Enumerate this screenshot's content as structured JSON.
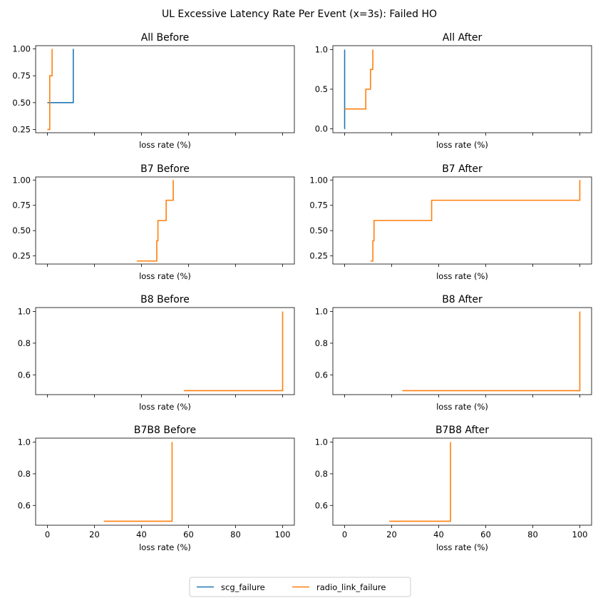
{
  "figure": {
    "title": "UL Excessive Latency Rate Per Event (x=3s): Failed HO"
  },
  "colors": {
    "scg_failure": "#1f77b4",
    "radio_link_failure": "#ff7f0e"
  },
  "legend": {
    "placement": "bottom-center",
    "entries": [
      {
        "key": "scg_failure",
        "label": "scg_failure"
      },
      {
        "key": "radio_link_failure",
        "label": "radio_link_failure"
      }
    ]
  },
  "chart_data": [
    {
      "type": "line",
      "step": true,
      "title": "All Before",
      "xlabel": "loss rate (%)",
      "xlim": [
        -5,
        105
      ],
      "ylim": [
        0.22,
        1.03
      ],
      "yticks": [
        0.25,
        0.5,
        0.75,
        1.0
      ],
      "ytick_labels": [
        "0.25",
        "0.50",
        "0.75",
        "1.00"
      ],
      "xticks": [
        0,
        20,
        40,
        60,
        80,
        100
      ],
      "xtick_labels": [],
      "series": [
        {
          "key": "scg_failure",
          "x": [
            0,
            11
          ],
          "y": [
            0.5,
            1.0
          ]
        },
        {
          "key": "radio_link_failure",
          "x": [
            0,
            1,
            2
          ],
          "y": [
            0.25,
            0.75,
            1.0
          ]
        }
      ]
    },
    {
      "type": "line",
      "step": true,
      "title": "All After",
      "xlabel": "loss rate (%)",
      "xlim": [
        -5,
        105
      ],
      "ylim": [
        -0.05,
        1.05
      ],
      "yticks": [
        0.0,
        0.5,
        1.0
      ],
      "ytick_labels": [
        "0.0",
        "0.5",
        "1.0"
      ],
      "xticks": [
        0,
        20,
        40,
        60,
        80,
        100
      ],
      "xtick_labels": [],
      "series": [
        {
          "key": "scg_failure",
          "x": [
            0,
            0.01
          ],
          "y": [
            0.0,
            1.0
          ]
        },
        {
          "key": "radio_link_failure",
          "x": [
            0,
            9,
            11,
            12
          ],
          "y": [
            0.25,
            0.5,
            0.75,
            1.0
          ]
        }
      ]
    },
    {
      "type": "line",
      "step": true,
      "title": "B7 Before",
      "xlabel": "loss rate (%)",
      "xlim": [
        -5,
        105
      ],
      "ylim": [
        0.17,
        1.03
      ],
      "yticks": [
        0.25,
        0.5,
        0.75,
        1.0
      ],
      "ytick_labels": [
        "0.25",
        "0.50",
        "0.75",
        "1.00"
      ],
      "xticks": [
        0,
        20,
        40,
        60,
        80,
        100
      ],
      "xtick_labels": [],
      "series": [
        {
          "key": "radio_link_failure",
          "x": [
            38,
            46.5,
            47,
            50.5,
            53.5
          ],
          "y": [
            0.2,
            0.4,
            0.6,
            0.8,
            1.0
          ]
        }
      ]
    },
    {
      "type": "line",
      "step": true,
      "title": "B7 After",
      "xlabel": "loss rate (%)",
      "xlim": [
        -5,
        105
      ],
      "ylim": [
        0.17,
        1.03
      ],
      "yticks": [
        0.25,
        0.5,
        0.75,
        1.0
      ],
      "ytick_labels": [
        "0.25",
        "0.50",
        "0.75",
        "1.00"
      ],
      "xticks": [
        0,
        20,
        40,
        60,
        80,
        100
      ],
      "xtick_labels": [],
      "series": [
        {
          "key": "radio_link_failure",
          "x": [
            11,
            12,
            12.5,
            37,
            100
          ],
          "y": [
            0.2,
            0.4,
            0.6,
            0.8,
            1.0
          ]
        }
      ]
    },
    {
      "type": "line",
      "step": true,
      "title": "B8 Before",
      "xlabel": "loss rate (%)",
      "xlim": [
        -5,
        105
      ],
      "ylim": [
        0.475,
        1.025
      ],
      "yticks": [
        0.6,
        0.8,
        1.0
      ],
      "ytick_labels": [
        "0.6",
        "0.8",
        "1.0"
      ],
      "xticks": [
        0,
        20,
        40,
        60,
        80,
        100
      ],
      "xtick_labels": [],
      "series": [
        {
          "key": "radio_link_failure",
          "x": [
            58,
            100
          ],
          "y": [
            0.5,
            1.0
          ]
        }
      ]
    },
    {
      "type": "line",
      "step": true,
      "title": "B8 After",
      "xlabel": "loss rate (%)",
      "xlim": [
        -5,
        105
      ],
      "ylim": [
        0.475,
        1.025
      ],
      "yticks": [
        0.6,
        0.8,
        1.0
      ],
      "ytick_labels": [
        "0.6",
        "0.8",
        "1.0"
      ],
      "xticks": [
        0,
        20,
        40,
        60,
        80,
        100
      ],
      "xtick_labels": [],
      "series": [
        {
          "key": "radio_link_failure",
          "x": [
            24.5,
            100
          ],
          "y": [
            0.5,
            1.0
          ]
        }
      ]
    },
    {
      "type": "line",
      "step": true,
      "title": "B7B8 Before",
      "xlabel": "loss rate (%)",
      "xlim": [
        -5,
        105
      ],
      "ylim": [
        0.475,
        1.025
      ],
      "yticks": [
        0.6,
        0.8,
        1.0
      ],
      "ytick_labels": [
        "0.6",
        "0.8",
        "1.0"
      ],
      "xticks": [
        0,
        20,
        40,
        60,
        80,
        100
      ],
      "xtick_labels": [
        "0",
        "20",
        "40",
        "60",
        "80",
        "100"
      ],
      "series": [
        {
          "key": "radio_link_failure",
          "x": [
            24,
            53
          ],
          "y": [
            0.5,
            1.0
          ]
        }
      ]
    },
    {
      "type": "line",
      "step": true,
      "title": "B7B8 After",
      "xlabel": "loss rate (%)",
      "xlim": [
        -5,
        105
      ],
      "ylim": [
        0.475,
        1.025
      ],
      "yticks": [
        0.6,
        0.8,
        1.0
      ],
      "ytick_labels": [
        "0.6",
        "0.8",
        "1.0"
      ],
      "xticks": [
        0,
        20,
        40,
        60,
        80,
        100
      ],
      "xtick_labels": [
        "0",
        "20",
        "40",
        "60",
        "80",
        "100"
      ],
      "series": [
        {
          "key": "radio_link_failure",
          "x": [
            19,
            45
          ],
          "y": [
            0.5,
            1.0
          ]
        }
      ]
    }
  ]
}
